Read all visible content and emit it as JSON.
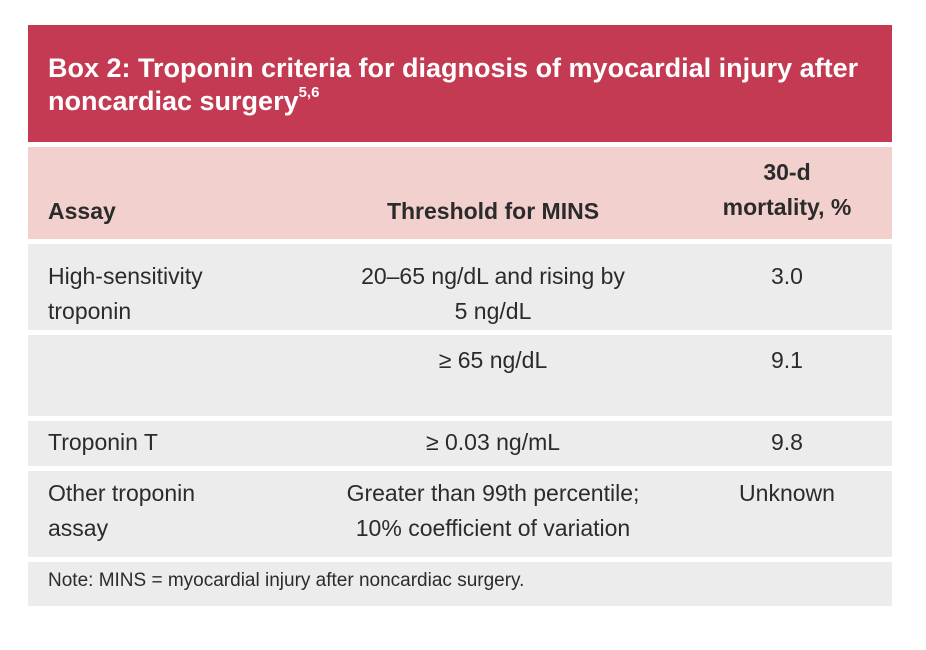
{
  "box": {
    "title": "Box 2: Troponin criteria for diagnosis of myocardial injury after noncardiac surgery",
    "title_refs": "5,6",
    "accent_color": "#c43a52",
    "header_bg": "#f2d0ce",
    "row_bg": "#ececec"
  },
  "table": {
    "headers": {
      "assay": "Assay",
      "threshold": "Threshold for MINS",
      "mortality_line1": "30-d",
      "mortality_line2": "mortality, %"
    },
    "rows": [
      {
        "assay_line1": "High-sensitivity",
        "assay_line2": "troponin",
        "threshold_line1": "20–65 ng/dL and rising by",
        "threshold_line2": "5 ng/dL",
        "mortality": "3.0"
      },
      {
        "assay_line1": "",
        "assay_line2": "",
        "threshold_line1": "≥ 65 ng/dL",
        "threshold_line2": "",
        "mortality": "9.1"
      },
      {
        "assay_line1": "Troponin T",
        "assay_line2": "",
        "threshold_line1": "≥ 0.03 ng/mL",
        "threshold_line2": "",
        "mortality": "9.8"
      },
      {
        "assay_line1": "Other troponin",
        "assay_line2": "assay",
        "threshold_line1": "Greater than 99th percentile;",
        "threshold_line2": "10% coefficient of variation",
        "mortality": "Unknown"
      }
    ],
    "note": "Note: MINS = myocardial injury after noncardiac surgery."
  }
}
